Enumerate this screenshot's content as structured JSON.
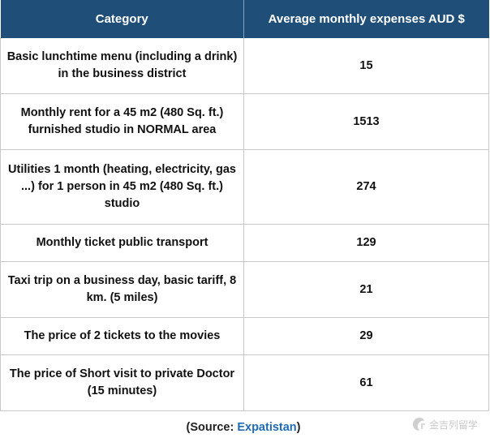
{
  "table": {
    "headers": [
      "Category",
      "Average monthly expenses AUD $"
    ],
    "rows": [
      {
        "category": "Basic lunchtime menu (including a drink) in the business district",
        "value": "15"
      },
      {
        "category": "Monthly rent for a 45 m2 (480 Sq. ft.) furnished studio in NORMAL area",
        "value": "1513"
      },
      {
        "category": "Utilities 1 month (heating, electricity, gas ...) for 1 person in 45 m2 (480 Sq. ft.) studio",
        "value": "274"
      },
      {
        "category": "Monthly ticket public transport",
        "value": "129"
      },
      {
        "category": "Taxi trip on a business day, basic tariff, 8 km. (5 miles)",
        "value": "21"
      },
      {
        "category": "The price of 2 tickets to the movies",
        "value": "29"
      },
      {
        "category": "The price of Short visit to private Doctor (15 minutes)",
        "value": "61"
      }
    ]
  },
  "source": {
    "prefix": "(Source: ",
    "link": "Expatistan",
    "suffix": ")"
  },
  "watermark": {
    "icon": "logo-icon",
    "text": "金吉列留学"
  },
  "colors": {
    "header_bg": "#1f4e79",
    "link": "#1f6bb5"
  }
}
